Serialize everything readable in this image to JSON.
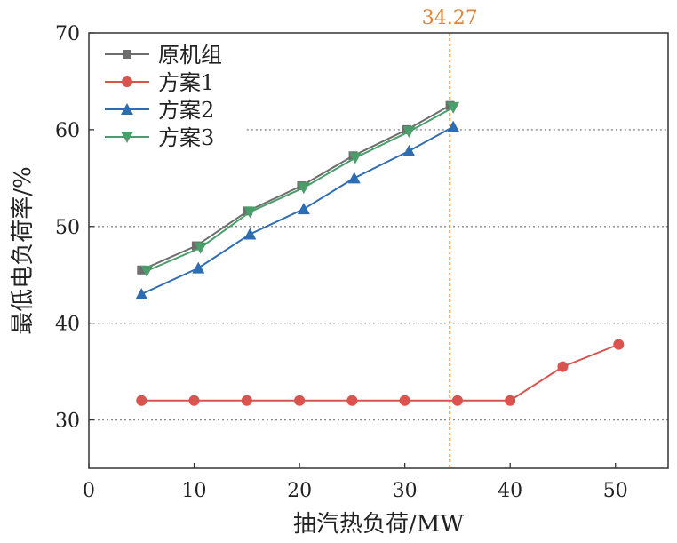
{
  "chart_data": {
    "type": "line",
    "xlabel": "抽汽热负荷/MW",
    "ylabel": "最低电负荷率/%",
    "xlim": [
      0,
      55
    ],
    "ylim": [
      25,
      70
    ],
    "x_ticks": [
      0,
      10,
      20,
      30,
      40,
      50
    ],
    "y_ticks": [
      30,
      40,
      50,
      60,
      70
    ],
    "x_tick_labels": [
      "0",
      "10",
      "20",
      "30",
      "40",
      "50"
    ],
    "y_tick_labels": [
      "30",
      "40",
      "50",
      "60",
      "70"
    ],
    "grid": "horizontal dotted",
    "legend_placement": "top-left",
    "series": [
      {
        "name": "原机组",
        "color": "#6d6d6d",
        "marker": "square",
        "x": [
          5,
          10.2,
          15.1,
          20.2,
          25.1,
          30.2,
          34.3
        ],
        "y": [
          45.5,
          48.0,
          51.6,
          54.2,
          57.3,
          60.0,
          62.5
        ]
      },
      {
        "name": "方案1",
        "color": "#d9534f",
        "marker": "circle",
        "x": [
          5,
          10,
          15,
          20,
          25,
          30,
          35,
          40,
          45,
          50.3
        ],
        "y": [
          32,
          32,
          32,
          32,
          32,
          32,
          32,
          32,
          35.5,
          37.8
        ]
      },
      {
        "name": "方案2",
        "color": "#2f6db3",
        "marker": "triangle-up",
        "x": [
          5,
          10.4,
          15.3,
          20.4,
          25.2,
          30.4,
          34.6
        ],
        "y": [
          43.0,
          45.7,
          49.2,
          51.8,
          55.0,
          57.8,
          60.3
        ]
      },
      {
        "name": "方案3",
        "color": "#4a9e6a",
        "marker": "triangle-down",
        "x": [
          5.5,
          10.6,
          15.3,
          20.4,
          25.3,
          30.4,
          34.6
        ],
        "y": [
          45.4,
          47.8,
          51.5,
          54.0,
          57.1,
          59.8,
          62.3
        ]
      }
    ],
    "reference_line": {
      "x": 34.27,
      "label": "34.27",
      "color": "#e0863a"
    }
  }
}
